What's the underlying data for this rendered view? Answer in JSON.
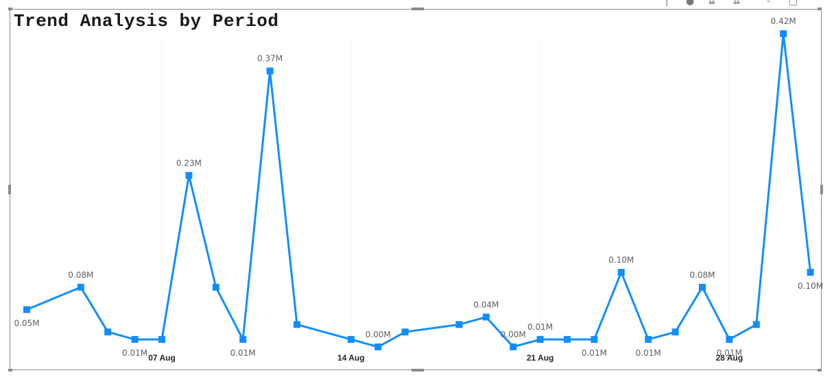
{
  "header_icons": [
    "pin-icon",
    "focus-icon",
    "drill-down-icon",
    "expand-all-icon",
    "more-options-icon",
    "copy-visual-icon"
  ],
  "chart_data": {
    "type": "line",
    "title": "Trend Analysis by Period",
    "color": "#118DFF",
    "x_ticks": [
      "07 Aug",
      "14 Aug",
      "21 Aug",
      "28 Aug"
    ],
    "series": [
      {
        "points": [
          {
            "x": "2023-08-02",
            "y": 0.05,
            "label": "0.05M"
          },
          {
            "x": "2023-08-04",
            "y": 0.08,
            "label": "0.08M"
          },
          {
            "x": "2023-08-05",
            "y": 0.02,
            "label": ""
          },
          {
            "x": "2023-08-06",
            "y": 0.01,
            "label": "0.01M"
          },
          {
            "x": "2023-08-07",
            "y": 0.01,
            "label": ""
          },
          {
            "x": "2023-08-08",
            "y": 0.23,
            "label": "0.23M"
          },
          {
            "x": "2023-08-09",
            "y": 0.08,
            "label": ""
          },
          {
            "x": "2023-08-10",
            "y": 0.01,
            "label": "0.01M"
          },
          {
            "x": "2023-08-11",
            "y": 0.37,
            "label": "0.37M"
          },
          {
            "x": "2023-08-12",
            "y": 0.03,
            "label": ""
          },
          {
            "x": "2023-08-14",
            "y": 0.01,
            "label": ""
          },
          {
            "x": "2023-08-15",
            "y": 0.0,
            "label": "0.00M"
          },
          {
            "x": "2023-08-16",
            "y": 0.02,
            "label": ""
          },
          {
            "x": "2023-08-18",
            "y": 0.03,
            "label": ""
          },
          {
            "x": "2023-08-19",
            "y": 0.04,
            "label": "0.04M"
          },
          {
            "x": "2023-08-20",
            "y": 0.0,
            "label": "0.00M"
          },
          {
            "x": "2023-08-21",
            "y": 0.01,
            "label": "0.01M"
          },
          {
            "x": "2023-08-22",
            "y": 0.01,
            "label": ""
          },
          {
            "x": "2023-08-23",
            "y": 0.01,
            "label": "0.01M"
          },
          {
            "x": "2023-08-24",
            "y": 0.1,
            "label": "0.10M"
          },
          {
            "x": "2023-08-25",
            "y": 0.01,
            "label": "0.01M"
          },
          {
            "x": "2023-08-26",
            "y": 0.02,
            "label": ""
          },
          {
            "x": "2023-08-27",
            "y": 0.08,
            "label": "0.08M"
          },
          {
            "x": "2023-08-28",
            "y": 0.01,
            "label": "0.01M"
          },
          {
            "x": "2023-08-29",
            "y": 0.03,
            "label": ""
          },
          {
            "x": "2023-08-30",
            "y": 0.42,
            "label": "0.42M"
          },
          {
            "x": "2023-08-31",
            "y": 0.1,
            "label": "0.10M"
          }
        ]
      }
    ],
    "grid": "vertical-dotted",
    "legend": "none"
  }
}
